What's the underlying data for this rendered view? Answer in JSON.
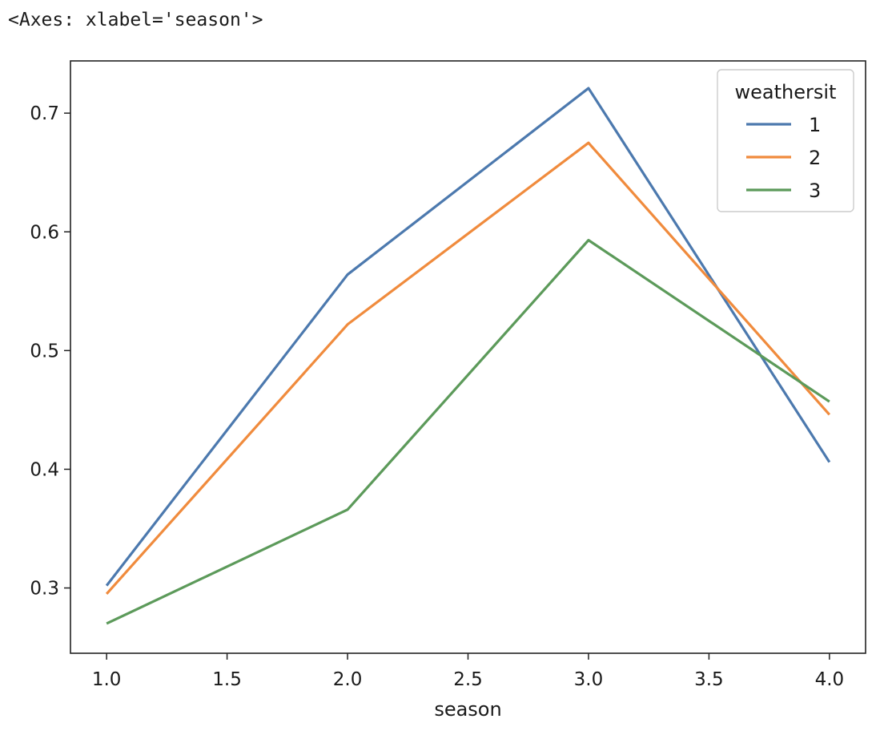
{
  "output_repr": "<Axes: xlabel='season'>",
  "chart_data": {
    "type": "line",
    "title": "",
    "xlabel": "season",
    "ylabel": "",
    "x": [
      1.0,
      2.0,
      3.0,
      4.0
    ],
    "xlim": [
      0.85,
      4.15
    ],
    "ylim": [
      0.245,
      0.744
    ],
    "xticks": [
      1.0,
      1.5,
      2.0,
      2.5,
      3.0,
      3.5,
      4.0
    ],
    "xtick_labels": [
      "1.0",
      "1.5",
      "2.0",
      "2.5",
      "3.0",
      "3.5",
      "4.0"
    ],
    "yticks": [
      0.3,
      0.4,
      0.5,
      0.6,
      0.7
    ],
    "ytick_labels": [
      "0.3",
      "0.4",
      "0.5",
      "0.6",
      "0.7"
    ],
    "grid": false,
    "legend": {
      "title": "weathersit",
      "placement": "top-right"
    },
    "series": [
      {
        "name": "1",
        "color": "#4c79ae",
        "values": [
          0.302,
          0.564,
          0.721,
          0.406
        ]
      },
      {
        "name": "2",
        "color": "#f08b3d",
        "values": [
          0.295,
          0.522,
          0.675,
          0.446
        ]
      },
      {
        "name": "3",
        "color": "#5c9a5a",
        "values": [
          0.27,
          0.366,
          0.593,
          0.457
        ]
      }
    ]
  }
}
